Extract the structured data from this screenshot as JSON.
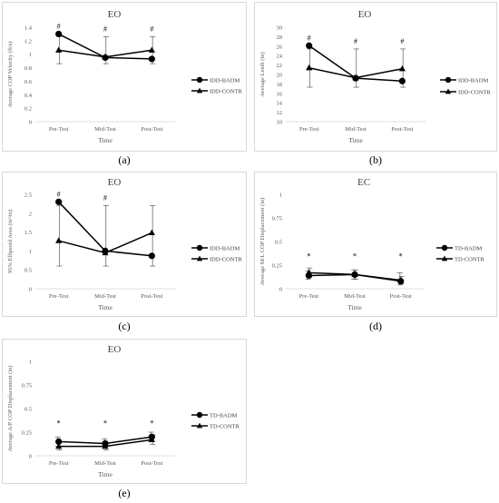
{
  "x_labels": [
    "Pre-Test",
    "Mid-Test",
    "Post-Test"
  ],
  "chart_data": [
    {
      "id": "a",
      "type": "line",
      "title": "EO",
      "ylabel": "Average COP Velocity (ft/s)",
      "xlabel": "Time",
      "caption": "(a)",
      "ylim": [
        0,
        1.4
      ],
      "yticks": [
        0,
        0.2,
        0.4,
        0.6,
        0.8,
        1,
        1.2,
        1.4
      ],
      "yticklabels": [
        "0",
        "0.2",
        "0.4",
        "0.6",
        "0.8",
        "1",
        "1.2",
        "1.4"
      ],
      "categories": [
        "Pre-Test",
        "Mid-Test",
        "Post-Test"
      ],
      "annotations": [
        "#",
        "#",
        "#"
      ],
      "legend_position": "right",
      "series": [
        {
          "name": "IDD-BADM",
          "marker": "circle",
          "values": [
            1.3,
            0.95,
            0.93
          ],
          "err_low": [
            null,
            null,
            null
          ],
          "err_high": [
            null,
            null,
            null
          ]
        },
        {
          "name": "IDD-CONTR",
          "marker": "triangle",
          "values": [
            1.06,
            0.96,
            1.06
          ],
          "err_low": [
            0.86,
            0.86,
            0.86
          ],
          "err_high": [
            1.26,
            1.26,
            1.26
          ]
        }
      ]
    },
    {
      "id": "b",
      "type": "line",
      "title": "EO",
      "ylabel": "Average Lenth (in)",
      "xlabel": "Time",
      "caption": "(b)",
      "ylim": [
        10,
        30
      ],
      "yticks": [
        10,
        12,
        14,
        16,
        18,
        20,
        22,
        24,
        26,
        28,
        30
      ],
      "yticklabels": [
        "10",
        "12",
        "14",
        "16",
        "18",
        "20",
        "22",
        "24",
        "26",
        "28",
        "30"
      ],
      "categories": [
        "Pre-Test",
        "Mid-Test",
        "Post-Test"
      ],
      "annotations": [
        "#",
        "#",
        "#"
      ],
      "legend_position": "right",
      "series": [
        {
          "name": "IDD-BADM",
          "marker": "circle",
          "values": [
            26.1,
            19.2,
            18.6
          ],
          "err_low": [
            null,
            null,
            null
          ],
          "err_high": [
            null,
            null,
            null
          ]
        },
        {
          "name": "IDD-CONTR",
          "marker": "triangle",
          "values": [
            21.4,
            19.3,
            21.2
          ],
          "err_low": [
            17.3,
            17.3,
            17.3
          ],
          "err_high": [
            25.4,
            25.4,
            25.4
          ]
        }
      ]
    },
    {
      "id": "c",
      "type": "line",
      "title": "EO",
      "ylabel": "95% Ellipsoid Area (in^in)",
      "xlabel": "Time",
      "caption": "(c)",
      "ylim": [
        0,
        2.5
      ],
      "yticks": [
        0,
        0.5,
        1,
        1.5,
        2,
        2.5
      ],
      "yticklabels": [
        "0",
        "0.5",
        "1",
        "1.5",
        "2",
        "2.5"
      ],
      "categories": [
        "Pre-Test",
        "Mid-Test",
        "Post-Test"
      ],
      "annotations": [
        "#",
        "#",
        ""
      ],
      "legend_position": "right",
      "series": [
        {
          "name": "IDD-BADM",
          "marker": "circle",
          "values": [
            2.3,
            1.0,
            0.87
          ],
          "err_low": [
            null,
            null,
            null
          ],
          "err_high": [
            null,
            null,
            null
          ]
        },
        {
          "name": "IDD-CONTR",
          "marker": "triangle",
          "values": [
            1.27,
            0.95,
            1.48
          ],
          "err_low": [
            0.6,
            0.6,
            0.6
          ],
          "err_high": [
            2.2,
            2.2,
            2.2
          ]
        }
      ]
    },
    {
      "id": "d",
      "type": "line",
      "title": "EC",
      "ylabel": "Average M/L COP Displacement (in)",
      "xlabel": "Time",
      "caption": "(d)",
      "ylim": [
        0,
        1
      ],
      "yticks": [
        0,
        0.25,
        0.5,
        0.75,
        1
      ],
      "yticklabels": [
        "0",
        "0.25",
        "0.5",
        "0.75",
        "1"
      ],
      "categories": [
        "Pre-Test",
        "Mid-Test",
        "Post-Test"
      ],
      "annotations": [
        "*",
        "*",
        "*"
      ],
      "legend_position": "right",
      "series": [
        {
          "name": "TD-BADM",
          "marker": "circle",
          "values": [
            0.14,
            0.15,
            0.08
          ],
          "err_low": [
            0.1,
            0.1,
            0.04
          ],
          "err_high": [
            0.19,
            0.2,
            0.17
          ]
        },
        {
          "name": "TD-CONTR",
          "marker": "triangle",
          "values": [
            0.17,
            0.15,
            0.09
          ],
          "err_low": [
            0.12,
            0.1,
            0.05
          ],
          "err_high": [
            0.22,
            0.2,
            0.13
          ]
        }
      ]
    },
    {
      "id": "e",
      "type": "line",
      "title": "EO",
      "ylabel": "Average A/P COP Displacement (in)",
      "xlabel": "Time",
      "caption": "(e)",
      "ylim": [
        0,
        1
      ],
      "yticks": [
        0,
        0.25,
        0.5,
        0.75,
        1
      ],
      "yticklabels": [
        "0",
        "0.25",
        "0.5",
        "0.75",
        "1"
      ],
      "categories": [
        "Pre-Test",
        "Mid-Test",
        "Post-Test"
      ],
      "annotations": [
        "*",
        "*",
        "*"
      ],
      "legend_position": "right",
      "series": [
        {
          "name": "TD-BADM",
          "marker": "circle",
          "values": [
            0.15,
            0.13,
            0.2
          ],
          "err_low": [
            0.1,
            0.08,
            0.15
          ],
          "err_high": [
            0.2,
            0.18,
            0.25
          ]
        },
        {
          "name": "TD-CONTR",
          "marker": "triangle",
          "values": [
            0.1,
            0.1,
            0.17
          ],
          "err_low": [
            0.06,
            0.06,
            0.12
          ],
          "err_high": [
            0.14,
            0.14,
            0.22
          ]
        }
      ]
    }
  ]
}
